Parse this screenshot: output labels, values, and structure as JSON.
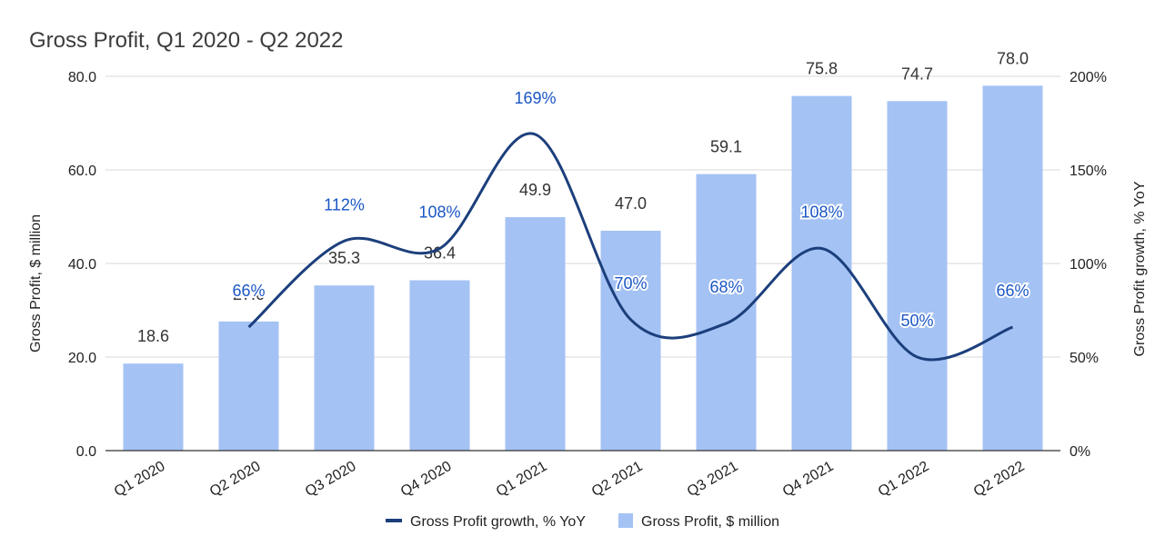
{
  "chart_data": {
    "type": "bar",
    "title": "Gross Profit, Q1 2020 - Q2 2022",
    "categories": [
      "Q1 2020",
      "Q2 2020",
      "Q3 2020",
      "Q4 2020",
      "Q1 2021",
      "Q2 2021",
      "Q3 2021",
      "Q4 2021",
      "Q1 2022",
      "Q2 2022"
    ],
    "series": [
      {
        "name": "Gross Profit, $ million",
        "type": "bar",
        "axis": "left",
        "values": [
          18.6,
          27.6,
          35.3,
          36.4,
          49.9,
          47.0,
          59.1,
          75.8,
          74.7,
          78.0
        ],
        "labels": [
          "18.6",
          "27.6",
          "35.3",
          "36.4",
          "49.9",
          "47.0",
          "59.1",
          "75.8",
          "74.7",
          "78.0"
        ],
        "color": "#a4c2f4"
      },
      {
        "name": "Gross Profit growth, % YoY",
        "type": "line",
        "axis": "right",
        "values": [
          null,
          66,
          112,
          108,
          169,
          70,
          68,
          108,
          50,
          66
        ],
        "labels": [
          null,
          "66%",
          "112%",
          "108%",
          "169%",
          "70%",
          "68%",
          "108%",
          "50%",
          "66%"
        ],
        "color": "#1c3f7c",
        "label_color": "#1a56c4"
      }
    ],
    "y_left": {
      "label": "Gross Profit, $ million",
      "range": [
        0,
        80
      ],
      "ticks": [
        "0.0",
        "20.0",
        "40.0",
        "60.0",
        "80.0"
      ]
    },
    "y_right": {
      "label": "Gross Profit growth, % YoY",
      "range": [
        0,
        200
      ],
      "ticks": [
        "0%",
        "50%",
        "100%",
        "150%",
        "200%"
      ]
    },
    "grid": true,
    "legend": {
      "position": "bottom",
      "items": [
        "Gross Profit growth, % YoY",
        "Gross Profit, $ million"
      ]
    }
  }
}
